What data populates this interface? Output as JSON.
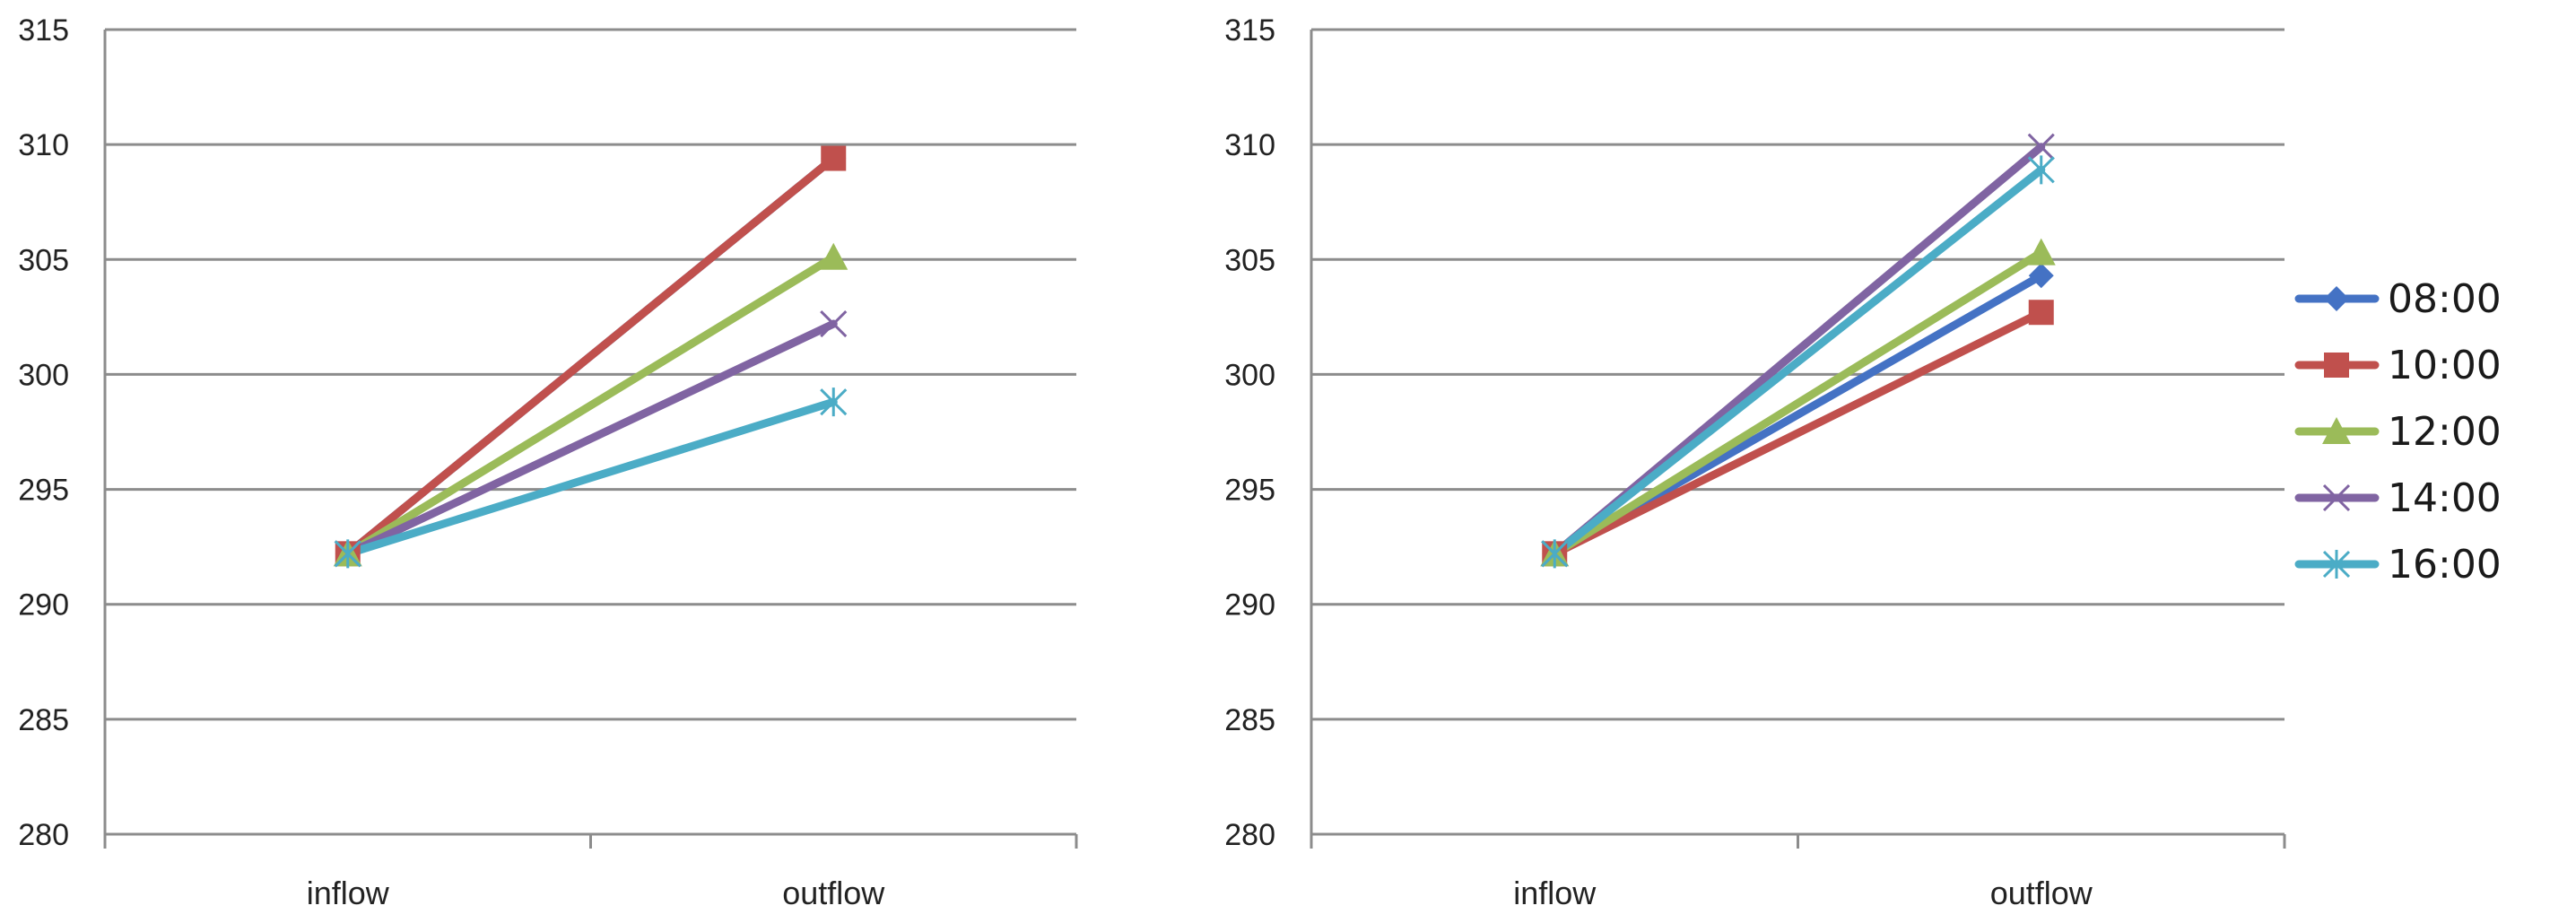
{
  "chart_data": [
    {
      "type": "line",
      "categories": [
        "inflow",
        "outflow"
      ],
      "ylim": [
        280,
        315
      ],
      "yticks": [
        280,
        285,
        290,
        295,
        300,
        305,
        310,
        315
      ],
      "grid": true,
      "legend": "none",
      "series": [
        {
          "name": "08:00",
          "color": "#4472C4",
          "marker": "diamond",
          "values": [
            292.2,
            309.4
          ]
        },
        {
          "name": "10:00",
          "color": "#C0504D",
          "marker": "square",
          "values": [
            292.2,
            309.4
          ]
        },
        {
          "name": "12:00",
          "color": "#9BBB59",
          "marker": "triangle",
          "values": [
            292.2,
            305.1
          ]
        },
        {
          "name": "14:00",
          "color": "#8064A2",
          "marker": "x",
          "values": [
            292.2,
            302.2
          ]
        },
        {
          "name": "16:00",
          "color": "#4BACC6",
          "marker": "star",
          "values": [
            292.2,
            298.8
          ]
        }
      ]
    },
    {
      "type": "line",
      "categories": [
        "inflow",
        "outflow"
      ],
      "ylim": [
        280,
        315
      ],
      "yticks": [
        280,
        285,
        290,
        295,
        300,
        305,
        310,
        315
      ],
      "grid": true,
      "legend": "right",
      "series": [
        {
          "name": "08:00",
          "color": "#4472C4",
          "marker": "diamond",
          "values": [
            292.2,
            304.3
          ]
        },
        {
          "name": "10:00",
          "color": "#C0504D",
          "marker": "square",
          "values": [
            292.2,
            302.7
          ]
        },
        {
          "name": "12:00",
          "color": "#9BBB59",
          "marker": "triangle",
          "values": [
            292.2,
            305.3
          ]
        },
        {
          "name": "14:00",
          "color": "#8064A2",
          "marker": "x",
          "values": [
            292.2,
            309.9
          ]
        },
        {
          "name": "16:00",
          "color": "#4BACC6",
          "marker": "star",
          "values": [
            292.2,
            308.9
          ]
        }
      ]
    }
  ]
}
